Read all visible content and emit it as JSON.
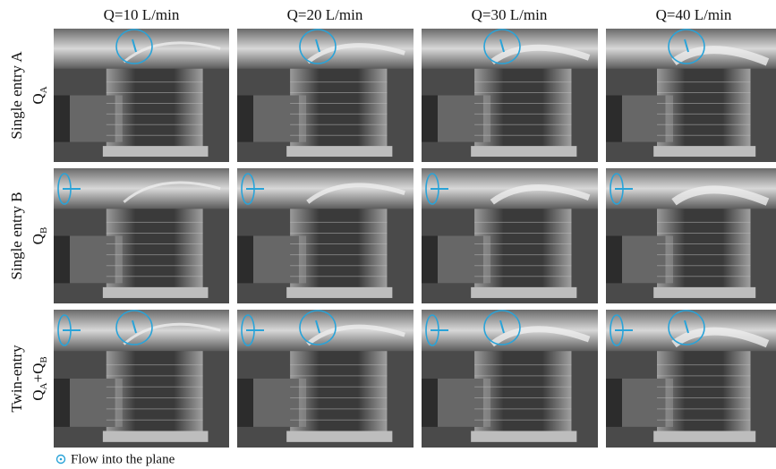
{
  "columns": [
    "Q=10 L/min",
    "Q=20 L/min",
    "Q=30 L/min",
    "Q=40 L/min"
  ],
  "rows": [
    {
      "line1": "Single entry A",
      "line2": [
        [
          "Q",
          "A"
        ]
      ]
    },
    {
      "line1": "Single entry B",
      "line2": [
        [
          "Q",
          "B"
        ]
      ]
    },
    {
      "line1": "Twin-entry",
      "line2": [
        [
          "Q",
          "A"
        ],
        [
          "+Q",
          "B"
        ]
      ]
    }
  ],
  "legend": "Flow into the plane"
}
